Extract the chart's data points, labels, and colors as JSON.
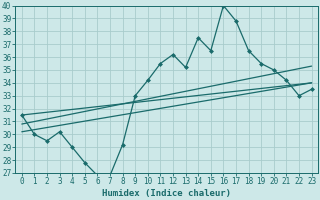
{
  "xlabel": "Humidex (Indice chaleur)",
  "bg_color": "#cde8e8",
  "line_color": "#1a6b6b",
  "grid_color": "#a8cccc",
  "xlim": [
    -0.5,
    23.5
  ],
  "ylim": [
    27,
    40
  ],
  "xticks": [
    0,
    1,
    2,
    3,
    4,
    5,
    6,
    7,
    8,
    9,
    10,
    11,
    12,
    13,
    14,
    15,
    16,
    17,
    18,
    19,
    20,
    21,
    22,
    23
  ],
  "yticks": [
    27,
    28,
    29,
    30,
    31,
    32,
    33,
    34,
    35,
    36,
    37,
    38,
    39,
    40
  ],
  "main_x": [
    0,
    1,
    2,
    3,
    4,
    5,
    6,
    7,
    8,
    9,
    10,
    11,
    12,
    13,
    14,
    15,
    16,
    17,
    18,
    19,
    20,
    21,
    22,
    23
  ],
  "main_y": [
    31.5,
    30.0,
    29.5,
    30.2,
    29.0,
    27.8,
    26.8,
    26.8,
    29.2,
    33.0,
    34.2,
    35.5,
    36.2,
    35.2,
    37.5,
    36.5,
    40.0,
    38.8,
    36.5,
    35.5,
    35.0,
    34.2,
    33.0,
    33.5
  ],
  "reg_lines": [
    {
      "x": [
        0,
        23
      ],
      "y": [
        31.5,
        34.0
      ]
    },
    {
      "x": [
        0,
        23
      ],
      "y": [
        30.8,
        35.3
      ]
    },
    {
      "x": [
        0,
        23
      ],
      "y": [
        30.2,
        34.0
      ]
    }
  ],
  "tick_fontsize": 5.5,
  "xlabel_fontsize": 6.5,
  "marker_size": 2.5,
  "line_width": 0.9
}
